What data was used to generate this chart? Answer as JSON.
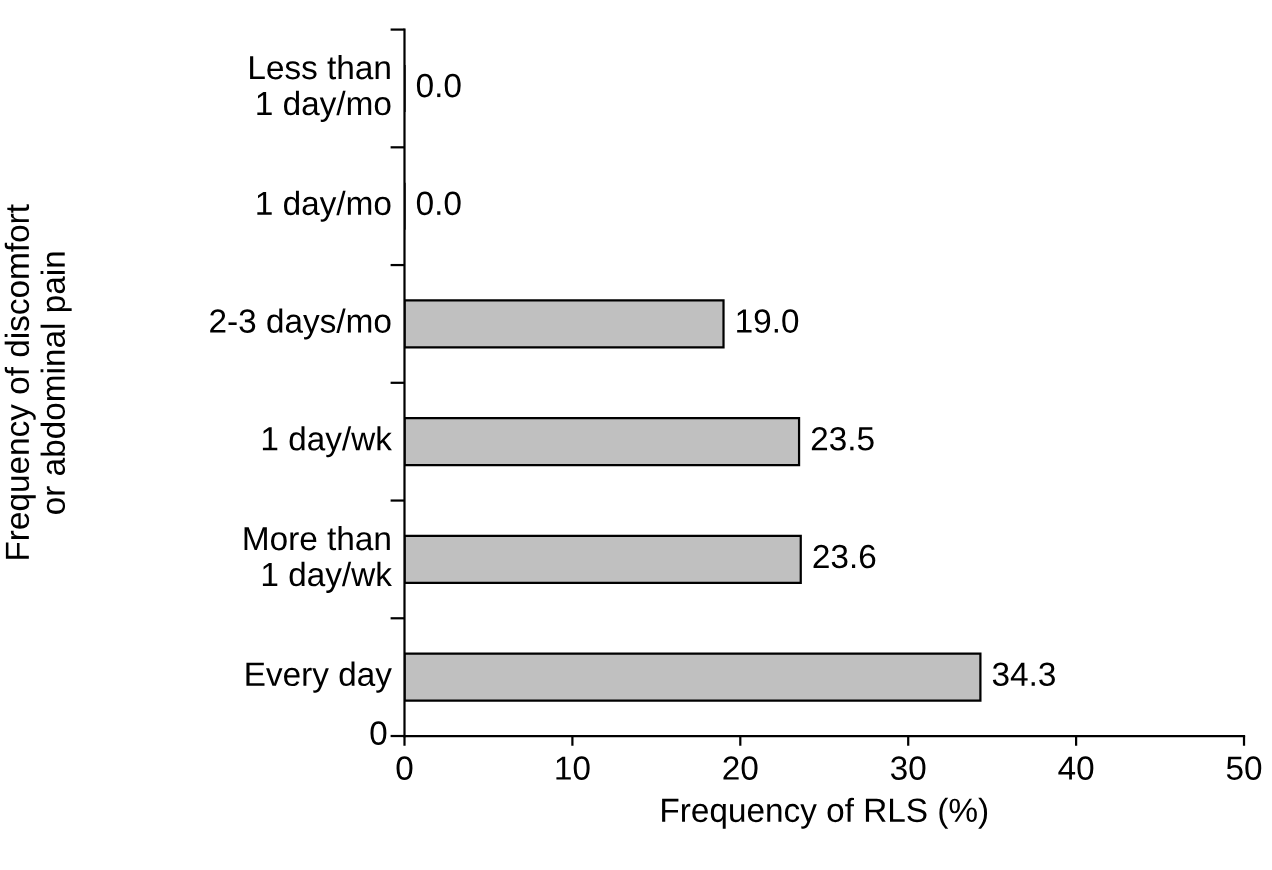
{
  "chart_data": {
    "type": "bar",
    "orientation": "horizontal",
    "xlabel": "Frequency of RLS (%)",
    "ylabel": "Frequency of discomfort\nor abdominal pain",
    "categories": [
      "Less than\n1 day/mo",
      "1 day/mo",
      "2-3 days/mo",
      "1 day/wk",
      "More than\n1 day/wk",
      "Every day"
    ],
    "values": [
      0.0,
      0.0,
      19.0,
      23.5,
      23.6,
      34.3
    ],
    "value_labels": [
      "0.0",
      "0.0",
      "19.0",
      "23.5",
      "23.6",
      "34.3"
    ],
    "color": "#c0c0c0",
    "xlim": [
      0,
      50
    ],
    "xticks": [
      0,
      10,
      20,
      30,
      40,
      50
    ],
    "annotations": [
      "0"
    ],
    "grid": false,
    "legend": false
  }
}
